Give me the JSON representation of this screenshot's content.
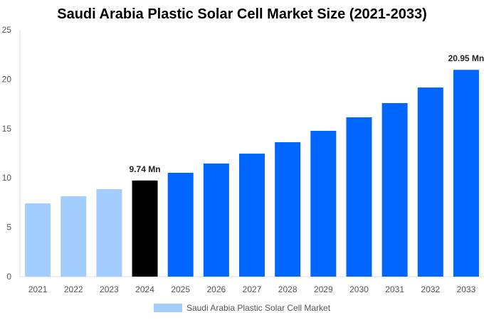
{
  "chart_data": {
    "type": "bar",
    "title": "Saudi Arabia Plastic Solar Cell Market Size (2021-2033)",
    "categories": [
      "2021",
      "2022",
      "2023",
      "2024",
      "2025",
      "2026",
      "2027",
      "2028",
      "2029",
      "2030",
      "2031",
      "2032",
      "2033"
    ],
    "series": [
      {
        "name": "Saudi Arabia Plastic Solar Cell Market",
        "values": [
          7.42,
          8.14,
          8.86,
          9.74,
          10.52,
          11.46,
          12.46,
          13.62,
          14.77,
          16.14,
          17.58,
          19.16,
          20.95
        ]
      }
    ],
    "bar_colors": [
      "#a3cdfe",
      "#a3cdfe",
      "#a3cdfe",
      "#000000",
      "#0066ff",
      "#0066ff",
      "#0066ff",
      "#0066ff",
      "#0066ff",
      "#0066ff",
      "#0066ff",
      "#0066ff",
      "#0066ff"
    ],
    "data_labels": [
      {
        "index": 3,
        "text": "9.74 Mn"
      },
      {
        "index": 12,
        "text": "20.95 Mn"
      }
    ],
    "ylim": [
      0,
      25
    ],
    "yticks": [
      0,
      5,
      10,
      15,
      20,
      25
    ],
    "xlabel": "",
    "ylabel": "",
    "grid": false,
    "legend_position": "bottom",
    "legend_color": "#a3cdfe"
  }
}
